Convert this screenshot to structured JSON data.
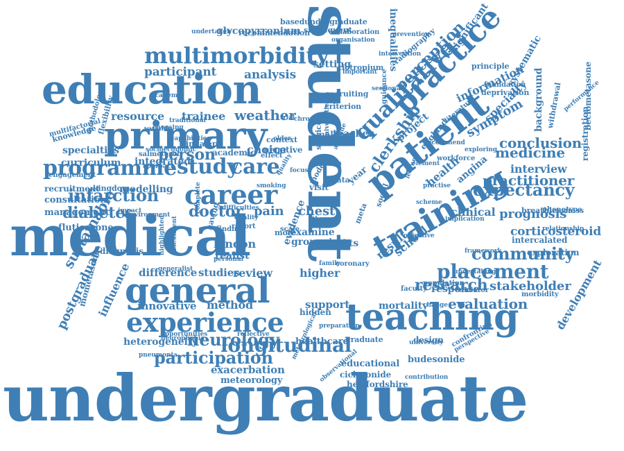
{
  "palette": {
    "word_color": "#3f7fb5",
    "background": "#ffffff"
  },
  "words": [
    "undergraduate",
    "student",
    "medical",
    "education",
    "primary",
    "practice",
    "patient",
    "training",
    "teaching",
    "general",
    "career",
    "experience",
    "programme",
    "study",
    "care",
    "multimorbidity",
    "qualitative",
    "longitudinal",
    "placement",
    "neurology",
    "participation",
    "infarction",
    "diabetes",
    "doctor",
    "research",
    "clerkship",
    "perception",
    "expectancy",
    "medicine",
    "practitioner",
    "community",
    "evaluation",
    "stakeholder",
    "corticosteroid",
    "prognosis",
    "person",
    "resource",
    "trainee",
    "weather",
    "analysis",
    "participant",
    "curriculum",
    "specialties",
    "management",
    "fluticasone",
    "consultation",
    "recruitment",
    "innovative",
    "difference",
    "studies",
    "review",
    "method",
    "heterogeneity",
    "exacerbation",
    "meteorology",
    "healthcare",
    "educational",
    "budesonide",
    "ciclesonide",
    "hertfordshire",
    "support",
    "higher",
    "hidden",
    "mortality",
    "sustainable",
    "postgraduate",
    "influence",
    "london",
    "realist",
    "result",
    "school",
    "clinical",
    "chest",
    "group",
    "gpsts",
    "evidence",
    "symptom",
    "conclusion",
    "interview",
    "angina",
    "health",
    "project",
    "information",
    "significant",
    "specialty",
    "systematic",
    "background",
    "development",
    "exploration",
    "intercalated",
    "beclometasone",
    "registration",
    "withdrawal",
    "glycopyrronium",
    "recommendation",
    "subsequent",
    "basedundergraduate",
    "inequalities",
    "tiotropium",
    "setting",
    "recruiting",
    "criterion",
    "year",
    "pain",
    "choice",
    "integrated",
    "modelling",
    "kingdom",
    "diagnosis",
    "mometasone",
    "england",
    "teacher",
    "making",
    "service",
    "design",
    "graduate",
    "response",
    "educator",
    "population",
    "principle",
    "foundation",
    "deprivation",
    "phenotype",
    "breathlessness",
    "morbidity",
    "relationship",
    "multifactorial",
    "knowledge",
    "engagement",
    "methodology",
    "flexibility",
    "salmeterol",
    "approach",
    "academic",
    "inhaler",
    "negative",
    "effect",
    "context",
    "examine",
    "role",
    "copd",
    "meta",
    "social",
    "data",
    "model",
    "visit",
    "more",
    "scale",
    "report",
    "finding",
    "having",
    "impact",
    "environment",
    "undertaken",
    "collaboration",
    "organisation",
    "important",
    "sectional",
    "prevention",
    "radiography",
    "guidance",
    "literature",
    "exploring",
    "recommend",
    "workforce",
    "practise",
    "learner",
    "family",
    "coronary",
    "faculty",
    "change",
    "confronting",
    "perspective",
    "undertaking",
    "framework",
    "implication",
    "reflective",
    "opportunities",
    "neurophobia",
    "pneumonia",
    "observational",
    "contribution",
    "meteorological",
    "universities",
    "university",
    "preparation",
    "generalist",
    "assessment",
    "highlighted",
    "difficulties",
    "quality",
    "smoking",
    "personal",
    "complete",
    "quality",
    "objective",
    "scheme",
    "element",
    "attitude",
    "clinician",
    "therapy",
    "focus",
    "older",
    "chronic",
    "trial",
    "variable",
    "choosing",
    "academy",
    "intervention",
    "performance",
    "socioeconomic",
    "traditional",
    "capabilities",
    "publisher"
  ]
}
